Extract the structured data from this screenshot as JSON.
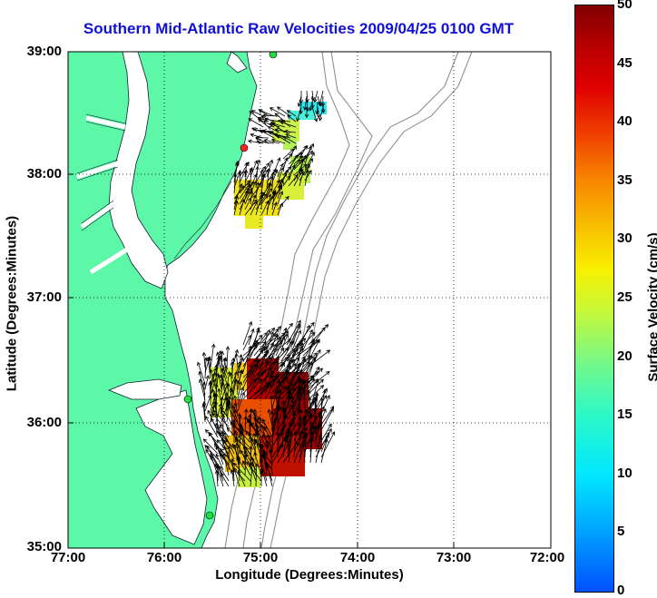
{
  "title": "Southern Mid-Atlantic Raw Velocities 2009/04/25 0100 GMT",
  "x_axis": {
    "label": "Longitude (Degrees:Minutes)",
    "ticks": [
      "77:00",
      "76:00",
      "75:00",
      "74:00",
      "73:00",
      "72:00"
    ]
  },
  "y_axis": {
    "label": "Latitude (Degrees:Minutes)",
    "ticks": [
      "39:00",
      "38:00",
      "37:00",
      "36:00",
      "35:00"
    ]
  },
  "colorbar": {
    "label": "Surface Velocity (cm/s)",
    "ticks": [
      "50",
      "45",
      "40",
      "35",
      "30",
      "25",
      "20",
      "15",
      "10",
      "5",
      "0"
    ],
    "range": [
      0,
      50
    ]
  },
  "colors": {
    "land": "#5cf8a8",
    "title": "#1010d8",
    "bathymetry": "#909090"
  }
}
